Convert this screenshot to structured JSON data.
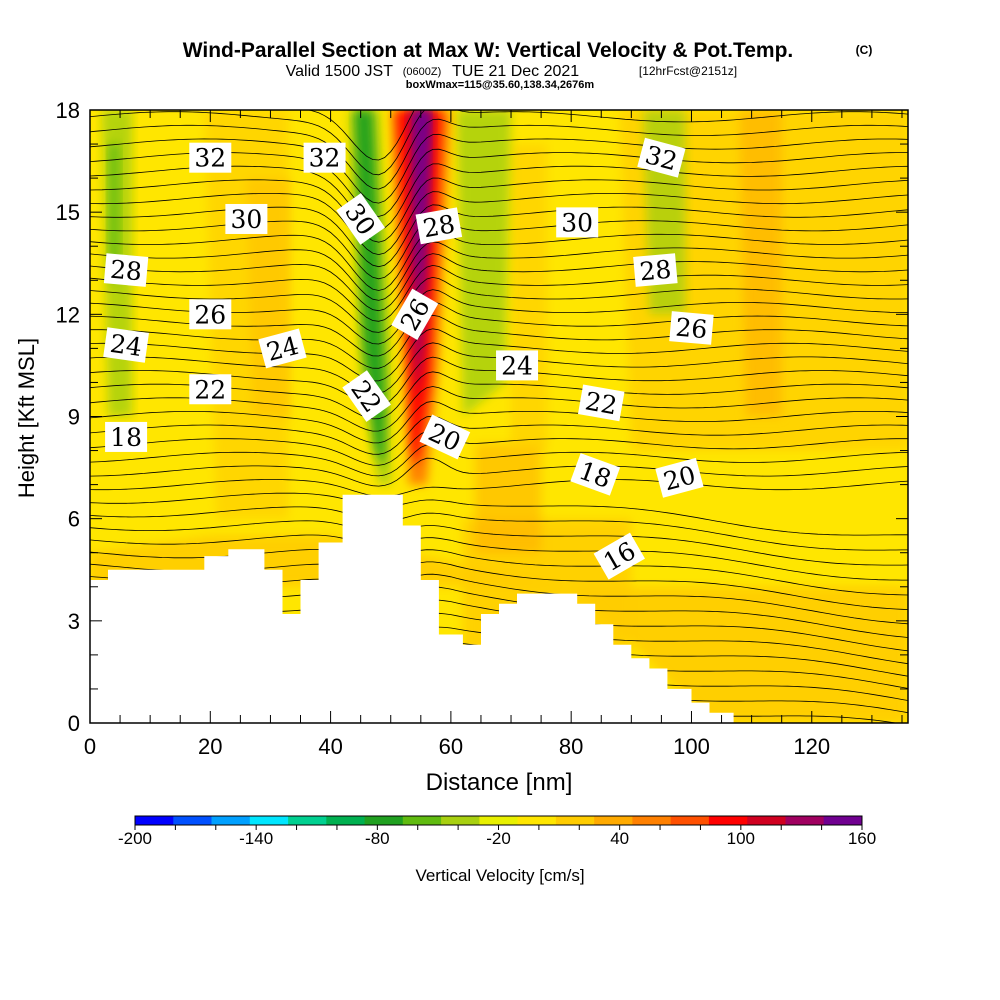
{
  "title": {
    "main": "Wind-Parallel Section at Max W: Vertical Velocity & Pot.Temp.",
    "copyright": "(C)",
    "valid_a": "Valid 1500 JST",
    "valid_z": "(0600Z)",
    "valid_b": "TUE 21 Dec 2021",
    "fcst": "[12hrFcst@2151z]",
    "box": "boxWmax=115@35.60,138.34,2676m"
  },
  "chart_data": {
    "type": "heatmap",
    "xlabel": "Distance [nm]",
    "ylabel": "Height [Kft MSL]",
    "xlim": [
      0,
      136
    ],
    "ylim": [
      0,
      18
    ],
    "xticks": [
      0,
      20,
      40,
      60,
      80,
      100,
      120
    ],
    "yticks": [
      0,
      3,
      6,
      9,
      12,
      15,
      18
    ],
    "colorbar": {
      "label": "Vertical Velocity [cm/s]",
      "ticks": [
        -200,
        -140,
        -80,
        -20,
        40,
        100,
        160
      ],
      "bounds": [
        -200,
        160
      ],
      "colors": [
        "#0000ff",
        "#0050ff",
        "#00a0ff",
        "#00e6ff",
        "#00d090",
        "#00b050",
        "#20a020",
        "#60bb10",
        "#a8d010",
        "#e8f000",
        "#ffe600",
        "#ffcc00",
        "#ffaa00",
        "#ff8000",
        "#ff5000",
        "#ff0000",
        "#d00020",
        "#a00060",
        "#700090"
      ]
    },
    "theta_labels": [
      {
        "x": 20,
        "y": 16.6,
        "text": "32",
        "rot": 0
      },
      {
        "x": 39,
        "y": 16.6,
        "text": "32",
        "rot": 0
      },
      {
        "x": 95,
        "y": 16.6,
        "text": "32",
        "rot": 15
      },
      {
        "x": 26,
        "y": 14.8,
        "text": "30",
        "rot": 0
      },
      {
        "x": 45,
        "y": 14.8,
        "text": "30",
        "rot": 55
      },
      {
        "x": 81,
        "y": 14.7,
        "text": "30",
        "rot": 0
      },
      {
        "x": 58,
        "y": 14.6,
        "text": "28",
        "rot": -10
      },
      {
        "x": 6,
        "y": 13.3,
        "text": "28",
        "rot": 5
      },
      {
        "x": 94,
        "y": 13.3,
        "text": "28",
        "rot": -5
      },
      {
        "x": 20,
        "y": 12.0,
        "text": "26",
        "rot": 0
      },
      {
        "x": 54,
        "y": 12.0,
        "text": "26",
        "rot": -60
      },
      {
        "x": 100,
        "y": 11.6,
        "text": "26",
        "rot": 5
      },
      {
        "x": 6,
        "y": 11.1,
        "text": "24",
        "rot": 8
      },
      {
        "x": 32,
        "y": 11.0,
        "text": "24",
        "rot": -15
      },
      {
        "x": 71,
        "y": 10.5,
        "text": "24",
        "rot": 0
      },
      {
        "x": 20,
        "y": 9.8,
        "text": "22",
        "rot": 0
      },
      {
        "x": 46,
        "y": 9.6,
        "text": "22",
        "rot": 55
      },
      {
        "x": 85,
        "y": 9.4,
        "text": "22",
        "rot": 10
      },
      {
        "x": 59,
        "y": 8.4,
        "text": "20",
        "rot": 25
      },
      {
        "x": 98,
        "y": 7.2,
        "text": "20",
        "rot": -15
      },
      {
        "x": 6,
        "y": 8.4,
        "text": "18",
        "rot": 0
      },
      {
        "x": 84,
        "y": 7.3,
        "text": "18",
        "rot": 20
      },
      {
        "x": 88,
        "y": 4.9,
        "text": "16",
        "rot": -30
      }
    ],
    "terrain": [
      [
        0,
        4.2
      ],
      [
        3,
        4.2
      ],
      [
        3,
        4.5
      ],
      [
        19,
        4.5
      ],
      [
        19,
        4.9
      ],
      [
        23,
        4.9
      ],
      [
        23,
        5.1
      ],
      [
        29,
        5.1
      ],
      [
        29,
        4.5
      ],
      [
        32,
        4.5
      ],
      [
        32,
        3.2
      ],
      [
        35,
        3.2
      ],
      [
        35,
        4.2
      ],
      [
        38,
        4.2
      ],
      [
        38,
        5.3
      ],
      [
        42,
        5.3
      ],
      [
        42,
        6.7
      ],
      [
        52,
        6.7
      ],
      [
        52,
        5.8
      ],
      [
        55,
        5.8
      ],
      [
        55,
        4.2
      ],
      [
        58,
        4.2
      ],
      [
        58,
        2.6
      ],
      [
        62,
        2.6
      ],
      [
        62,
        2.3
      ],
      [
        65,
        2.3
      ],
      [
        65,
        3.2
      ],
      [
        68,
        3.2
      ],
      [
        68,
        3.5
      ],
      [
        71,
        3.5
      ],
      [
        71,
        3.8
      ],
      [
        81,
        3.8
      ],
      [
        81,
        3.5
      ],
      [
        84,
        3.5
      ],
      [
        84,
        2.9
      ],
      [
        87,
        2.9
      ],
      [
        87,
        2.3
      ],
      [
        90,
        2.3
      ],
      [
        90,
        1.9
      ],
      [
        93,
        1.9
      ],
      [
        93,
        1.6
      ],
      [
        96,
        1.6
      ],
      [
        96,
        1.0
      ],
      [
        100,
        1.0
      ],
      [
        100,
        0.6
      ],
      [
        103,
        0.6
      ],
      [
        103,
        0.3
      ],
      [
        107,
        0.3
      ],
      [
        107,
        0.0
      ]
    ]
  }
}
